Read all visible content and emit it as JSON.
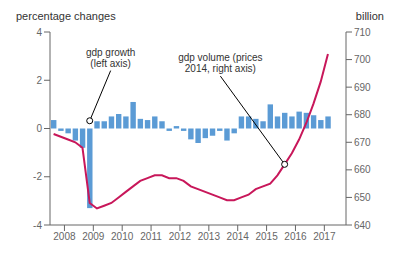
{
  "chart_data": {
    "type": "bar",
    "ylabel": "percentage changes",
    "y2label": "billion",
    "x": [
      2007.625,
      2007.875,
      2008.125,
      2008.375,
      2008.625,
      2008.875,
      2009.125,
      2009.375,
      2009.625,
      2009.875,
      2010.125,
      2010.375,
      2010.625,
      2010.875,
      2011.125,
      2011.375,
      2011.625,
      2011.875,
      2012.125,
      2012.375,
      2012.625,
      2012.875,
      2013.125,
      2013.375,
      2013.625,
      2013.875,
      2014.125,
      2014.375,
      2014.625,
      2014.875,
      2015.125,
      2015.375,
      2015.625,
      2015.875,
      2016.125,
      2016.375,
      2016.625,
      2016.875,
      2017.125
    ],
    "series": [
      {
        "type": "bar",
        "color": "#5b9bd5",
        "values": [
          0.35,
          -0.1,
          -0.2,
          -0.5,
          -0.8,
          -3.3,
          0.3,
          0.3,
          0.5,
          0.6,
          0.5,
          1.1,
          0.4,
          0.35,
          0.5,
          0.3,
          -0.1,
          0.1,
          -0.1,
          -0.45,
          -0.6,
          -0.4,
          -0.3,
          -0.1,
          -0.5,
          -0.2,
          0.5,
          0.5,
          0.4,
          0.3,
          1.0,
          0.5,
          0.65,
          0.5,
          0.7,
          0.65,
          0.55,
          0.35,
          0.5
        ]
      },
      {
        "type": "line",
        "axis": "y2",
        "color": "#c8175a",
        "values": [
          673,
          672,
          671,
          670,
          668,
          648,
          646,
          647,
          648,
          650,
          652,
          654,
          656,
          657,
          658,
          658,
          657,
          657,
          656,
          654,
          653,
          652,
          651,
          650,
          649,
          649,
          650,
          651,
          653,
          654,
          655,
          658,
          662,
          666,
          671,
          677,
          684,
          692,
          702
        ]
      }
    ],
    "xlim": [
      2007.5,
      2017.75
    ],
    "xticks": [
      2008,
      2009,
      2010,
      2011,
      2012,
      2013,
      2014,
      2015,
      2016,
      2017
    ],
    "ylim": [
      -4,
      4
    ],
    "yticks": [
      -4,
      -2,
      0,
      2,
      4
    ],
    "y2lim": [
      640,
      710
    ],
    "y2ticks": [
      640,
      650,
      660,
      670,
      680,
      690,
      700,
      710
    ],
    "grid": false,
    "annotations": [
      {
        "text": "gdp growth\n(left axis)",
        "x": 2008.875,
        "y": 0.32,
        "text_x": 2009.6,
        "text_y": 2.4
      },
      {
        "text": "gdp volume (prices\n2014, right axis)",
        "axis": "y2",
        "x": 2015.625,
        "y": 662,
        "text_x": 2013.4,
        "text_y": 694
      }
    ]
  }
}
